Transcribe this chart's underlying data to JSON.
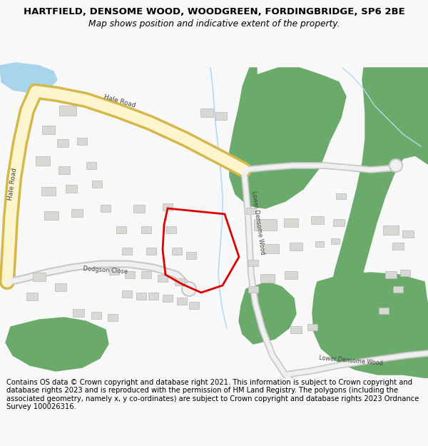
{
  "title": "HARTFIELD, DENSOME WOOD, WOODGREEN, FORDINGBRIDGE, SP6 2BE",
  "subtitle": "Map shows position and indicative extent of the property.",
  "footer": "Contains OS data © Crown copyright and database right 2021. This information is subject to Crown copyright and database rights 2023 and is reproduced with the permission of HM Land Registry. The polygons (including the associated geometry, namely x, y co-ordinates) are subject to Crown copyright and database rights 2023 Ordnance Survey 100026316.",
  "bg_color": "#f8f8f8",
  "map_bg": "#ffffff",
  "road_outer": "#d4b84a",
  "road_inner": "#fdf5ce",
  "green_color": "#6aaa6a",
  "water_color": "#a8d4ec",
  "building_color": "#d8d8d5",
  "building_edge": "#b8b8b8",
  "red_color": "#dd0000",
  "grey_road_outer": "#c8c8c8",
  "grey_road_inner": "#f0f0f0",
  "stream_color": "#b8d8f0",
  "label_color": "#444444",
  "title_fontsize": 9.5,
  "subtitle_fontsize": 8.8,
  "footer_fontsize": 7.2
}
